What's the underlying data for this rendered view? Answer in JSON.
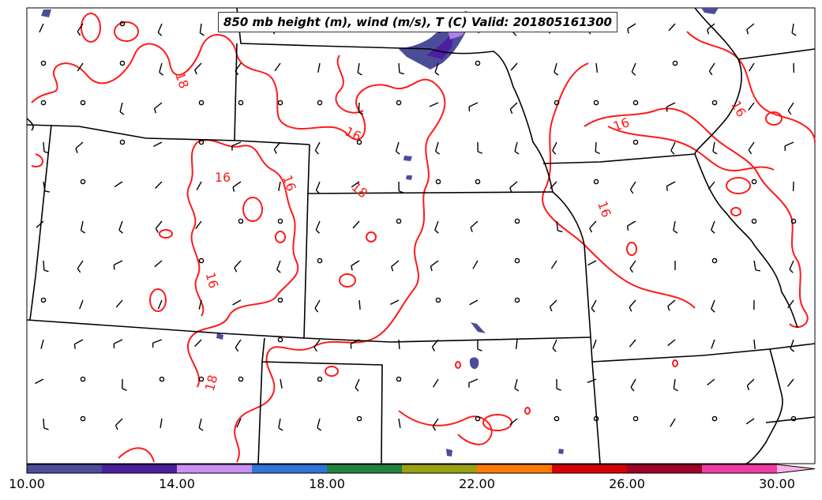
{
  "title": "850 mb height (m), wind (m/s), T (C) Valid: 201805161300",
  "contour_labels": [
    "18",
    "16",
    "16",
    "16",
    "16",
    "18",
    "16",
    "16",
    "16",
    "18"
  ],
  "colorbar": {
    "tick_labels": [
      "10.00",
      "14.00",
      "18.00",
      "22.00",
      "26.00",
      "30.00"
    ],
    "colors": [
      "#4b4d99",
      "#4c1ea0",
      "#c891f2",
      "#3074dc",
      "#218340",
      "#9aa113",
      "#ff7a00",
      "#d60000",
      "#a10029",
      "#f03ca0",
      "#ffb2e6"
    ]
  },
  "colors": {
    "contour": "#ff1a1a",
    "boundary": "#000000",
    "shading": "#4b4d99"
  }
}
